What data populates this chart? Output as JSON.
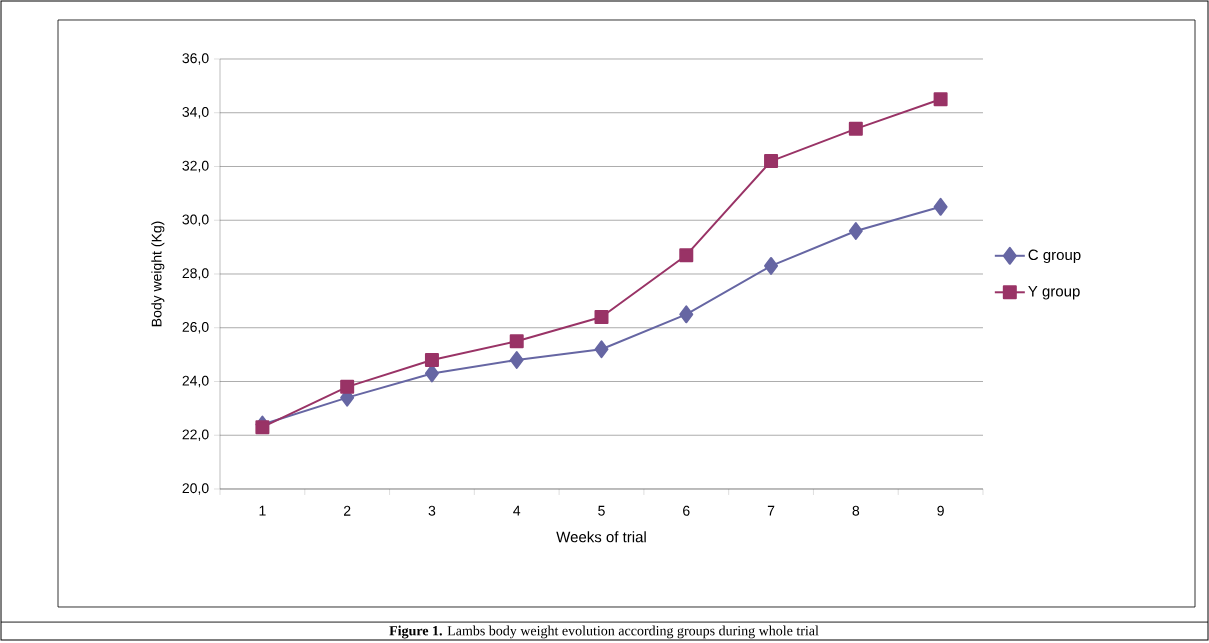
{
  "chart_data": {
    "type": "line",
    "ylabel": "Body weight (Kg)",
    "xlabel": "Weeks of trial",
    "categories": [
      "1",
      "2",
      "3",
      "4",
      "5",
      "6",
      "7",
      "8",
      "9"
    ],
    "series": [
      {
        "name": "C group",
        "color": "#6666a3",
        "marker": "diamond",
        "values": [
          22.4,
          23.4,
          24.3,
          24.8,
          25.2,
          26.5,
          28.3,
          29.6,
          30.5
        ]
      },
      {
        "name": "Y group",
        "color": "#993366",
        "marker": "square",
        "values": [
          22.3,
          23.8,
          24.8,
          25.5,
          26.4,
          28.7,
          32.2,
          33.4,
          34.5
        ]
      }
    ],
    "ylim": [
      20,
      36
    ],
    "yticks": [
      {
        "value": 20,
        "label": "20,0"
      },
      {
        "value": 22,
        "label": "22,0"
      },
      {
        "value": 24,
        "label": "24,0"
      },
      {
        "value": 26,
        "label": "26,0"
      },
      {
        "value": 28,
        "label": "28,0"
      },
      {
        "value": 30,
        "label": "30,0"
      },
      {
        "value": 32,
        "label": "32,0"
      },
      {
        "value": 34,
        "label": "34,0"
      },
      {
        "value": 36,
        "label": "36,0"
      }
    ],
    "grid": "y",
    "legend": "right",
    "line_style": "solid",
    "annotations": [
      "**Figure 1.** Lambs body weight evolution according groups during whole trial"
    ]
  }
}
